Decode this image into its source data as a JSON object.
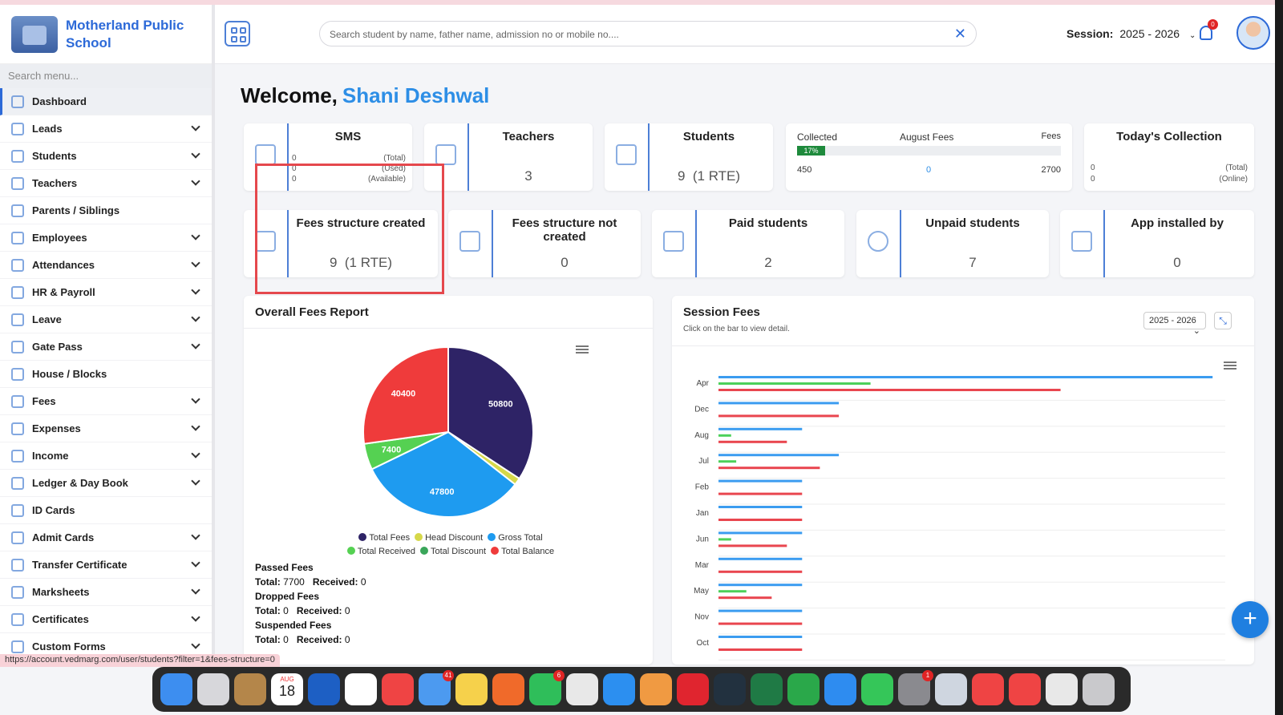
{
  "brand": {
    "name": "Motherland Public School"
  },
  "menu_search_placeholder": "Search menu...",
  "sidebar": {
    "items": [
      {
        "label": "Dashboard",
        "has_chevron": false
      },
      {
        "label": "Leads",
        "has_chevron": true
      },
      {
        "label": "Students",
        "has_chevron": true
      },
      {
        "label": "Teachers",
        "has_chevron": true
      },
      {
        "label": "Parents / Siblings",
        "has_chevron": false
      },
      {
        "label": "Employees",
        "has_chevron": true
      },
      {
        "label": "Attendances",
        "has_chevron": true
      },
      {
        "label": "HR & Payroll",
        "has_chevron": true
      },
      {
        "label": "Leave",
        "has_chevron": true
      },
      {
        "label": "Gate Pass",
        "has_chevron": true
      },
      {
        "label": "House / Blocks",
        "has_chevron": false
      },
      {
        "label": "Fees",
        "has_chevron": true
      },
      {
        "label": "Expenses",
        "has_chevron": true
      },
      {
        "label": "Income",
        "has_chevron": true
      },
      {
        "label": "Ledger & Day Book",
        "has_chevron": true
      },
      {
        "label": "ID Cards",
        "has_chevron": false
      },
      {
        "label": "Admit Cards",
        "has_chevron": true
      },
      {
        "label": "Transfer Certificate",
        "has_chevron": true
      },
      {
        "label": "Marksheets",
        "has_chevron": true
      },
      {
        "label": "Certificates",
        "has_chevron": true
      },
      {
        "label": "Custom Forms",
        "has_chevron": true
      }
    ]
  },
  "header": {
    "search_placeholder": "Search student by name, father name, admission no or mobile no....",
    "session_label": "Session:",
    "session_value": "2025 - 2026",
    "notification_count": "0"
  },
  "welcome": {
    "prefix": "Welcome,",
    "name": "Shani Deshwal"
  },
  "cards_row1": {
    "sms": {
      "title": "SMS",
      "rows": [
        {
          "value": "0",
          "label": "(Total)"
        },
        {
          "value": "0",
          "label": "(Used)"
        },
        {
          "value": "0",
          "label": "(Available)"
        }
      ]
    },
    "teachers": {
      "title": "Teachers",
      "value": "3"
    },
    "students": {
      "title": "Students",
      "value": "9",
      "rte": "(1 RTE)"
    },
    "fees": {
      "collected_label": "Collected",
      "month_label": "August Fees",
      "fees_label": "Fees",
      "percent_label": "17%",
      "percent": 17,
      "collected": "450",
      "mid": "0",
      "total": "2700"
    },
    "today": {
      "title": "Today's Collection",
      "rows": [
        {
          "value": "0",
          "label": "(Total)"
        },
        {
          "value": "0",
          "label": "(Online)"
        }
      ]
    }
  },
  "cards_row2": [
    {
      "title": "Fees structure created",
      "value": "9",
      "rte": "(1 RTE)"
    },
    {
      "title": "Fees structure not created",
      "value": "0"
    },
    {
      "title": "Paid students",
      "value": "2"
    },
    {
      "title": "Unpaid students",
      "value": "7"
    },
    {
      "title": "App installed by",
      "value": "0"
    }
  ],
  "overall_fees": {
    "title": "Overall Fees Report",
    "legend": [
      {
        "label": "Total Fees",
        "color": "#2e2366"
      },
      {
        "label": "Head Discount",
        "color": "#d6d84a"
      },
      {
        "label": "Gross Total",
        "color": "#1e9bf0"
      },
      {
        "label": "Total Received",
        "color": "#55d152"
      },
      {
        "label": "Total Discount",
        "color": "#3aa65a"
      },
      {
        "label": "Total Balance",
        "color": "#ef3b3b"
      }
    ],
    "stats": {
      "passed_title": "Passed Fees",
      "passed_total_label": "Total:",
      "passed_total": "7700",
      "passed_received_label": "Received:",
      "passed_received": "0",
      "dropped_title": "Dropped Fees",
      "dropped_total_label": "Total:",
      "dropped_total": "0",
      "dropped_received_label": "Received:",
      "dropped_received": "0",
      "suspended_title": "Suspended Fees",
      "suspended_total_label": "Total:",
      "suspended_total": "0",
      "suspended_received_label": "Received:",
      "suspended_received": "0"
    }
  },
  "session_fees": {
    "title": "Session Fees",
    "subtitle": "Click on the bar to view detail.",
    "select_value": "2025 - 2026"
  },
  "chart_data": [
    {
      "type": "pie",
      "title": "",
      "slices": [
        {
          "label": "Total Fees",
          "value": 50800,
          "color": "#2e2366",
          "show_label": true
        },
        {
          "label": "Head Discount",
          "value": 2000,
          "color": "#d6d84a",
          "show_label": false
        },
        {
          "label": "Gross Total",
          "value": 47800,
          "color": "#1e9bf0",
          "show_label": true
        },
        {
          "label": "Total Received",
          "value": 7400,
          "color": "#55d152",
          "show_label": true
        },
        {
          "label": "Total Balance",
          "value": 40400,
          "color": "#ef3b3b",
          "show_label": true
        }
      ]
    },
    {
      "type": "bar",
      "orientation": "horizontal",
      "title": "",
      "categories": [
        "Apr",
        "Dec",
        "Aug",
        "Jul",
        "Feb",
        "Jan",
        "Jun",
        "Mar",
        "May",
        "Nov",
        "Oct"
      ],
      "series": [
        {
          "color": "#3b9cf0",
          "values": [
            1950,
            475,
            330,
            475,
            330,
            330,
            330,
            330,
            330,
            330,
            330
          ]
        },
        {
          "color": "#4cd15a",
          "values": [
            600,
            0,
            50,
            70,
            0,
            0,
            50,
            0,
            110,
            0,
            0
          ]
        },
        {
          "color": "#e9464f",
          "values": [
            1350,
            475,
            270,
            400,
            330,
            330,
            270,
            330,
            210,
            330,
            330
          ]
        }
      ],
      "xlim": [
        0,
        2000
      ],
      "grid": true
    }
  ],
  "status_url": "https://account.vedmarg.com/user/students?filter=1&fees-structure=0",
  "dock": {
    "calendar_month": "AUG",
    "calendar_day": "18",
    "mail_badge": "41",
    "whatsapp_badge": "6",
    "settings_badge": "1",
    "apps": [
      {
        "icon": "finder-icon",
        "color": "#3d8ef0"
      },
      {
        "icon": "launchpad-icon",
        "color": "#d7d7db"
      },
      {
        "icon": "contacts-icon",
        "color": "#b4864a"
      },
      {
        "icon": "calendar-icon",
        "color": "#ffffff"
      },
      {
        "icon": "vedmarg-icon",
        "color": "#1d5fc4"
      },
      {
        "icon": "vedmarg-admin-icon",
        "color": "#ffffff"
      },
      {
        "icon": "anydesk-icon",
        "color": "#ef4444"
      },
      {
        "icon": "mail-icon",
        "color": "#4c9af0"
      },
      {
        "icon": "notes-icon",
        "color": "#f6d14b"
      },
      {
        "icon": "firefox-icon",
        "color": "#f06a2a"
      },
      {
        "icon": "whatsapp-icon",
        "color": "#2fbe5a"
      },
      {
        "icon": "chrome-icon",
        "color": "#e8e8e8"
      },
      {
        "icon": "safari-icon",
        "color": "#2c8ff0"
      },
      {
        "icon": "tool-icon",
        "color": "#f09a42"
      },
      {
        "icon": "opera-icon",
        "color": "#e0252f"
      },
      {
        "icon": "code-icon",
        "color": "#22313f"
      },
      {
        "icon": "excel-icon",
        "color": "#1f7a45"
      },
      {
        "icon": "numbers-icon",
        "color": "#2aa84a"
      },
      {
        "icon": "appstore-icon",
        "color": "#2e8cf0"
      },
      {
        "icon": "facetime-icon",
        "color": "#35c659"
      },
      {
        "icon": "settings-icon",
        "color": "#8a8a8f"
      },
      {
        "icon": "quicktime-icon",
        "color": "#cfd6e0"
      },
      {
        "icon": "anydesk-icon",
        "color": "#ef4444"
      },
      {
        "icon": "anydesk-icon",
        "color": "#ef4444"
      },
      {
        "icon": "documents-icon",
        "color": "#e8e8e8"
      },
      {
        "icon": "trash-icon",
        "color": "#c9c9cc"
      }
    ]
  }
}
